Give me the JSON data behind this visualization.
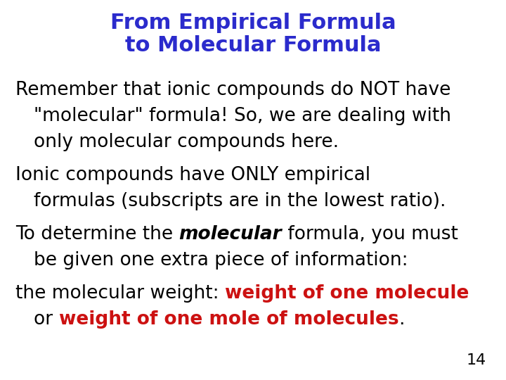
{
  "title_line1": "From Empirical Formula",
  "title_line2": "to Molecular Formula",
  "title_color": "#2b2bcc",
  "background_color": "#ffffff",
  "page_number": "14",
  "body_font_size": 19,
  "title_font_size": 22,
  "black": "#000000",
  "red": "#cc1111",
  "figwidth": 7.2,
  "figheight": 5.4,
  "dpi": 100
}
